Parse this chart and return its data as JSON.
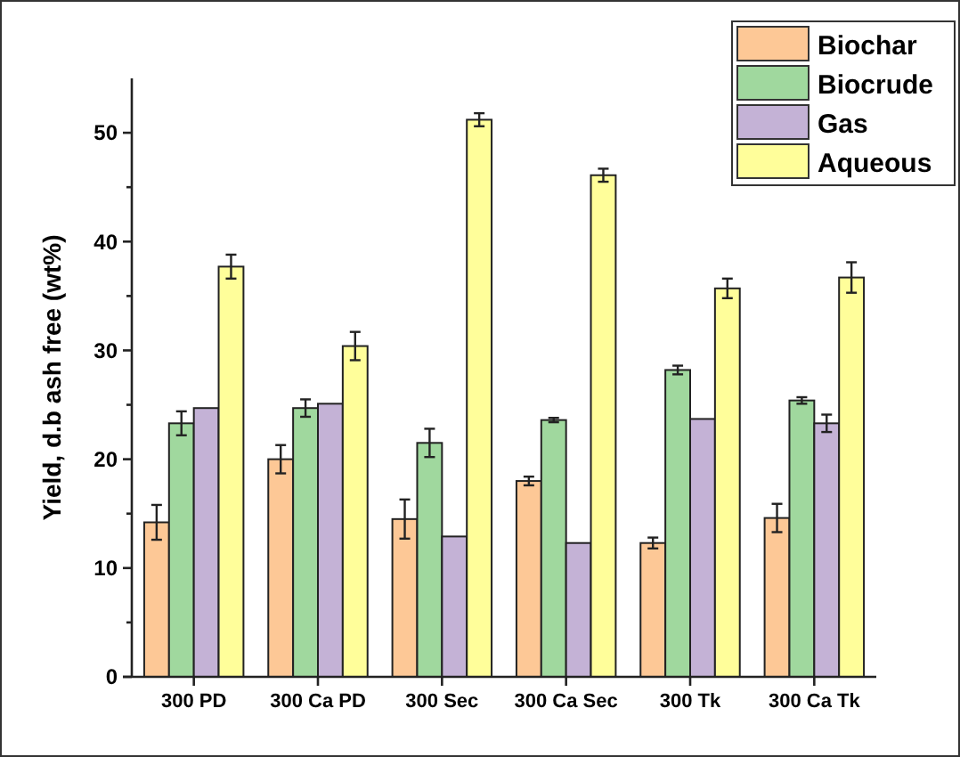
{
  "chart_data": {
    "type": "bar",
    "ylabel": "Yield, d.b ash free (wt%)",
    "categories": [
      "300 PD",
      "300 Ca PD",
      "300 Sec",
      "300 Ca Sec",
      "300 Tk",
      "300 Ca Tk"
    ],
    "series": [
      {
        "name": "Biochar",
        "color": "#fdc896",
        "values": [
          14.2,
          20.0,
          14.5,
          18.0,
          12.3,
          14.6
        ],
        "errors": [
          1.6,
          1.3,
          1.8,
          0.4,
          0.5,
          1.3
        ]
      },
      {
        "name": "Biocrude",
        "color": "#a0d89e",
        "values": [
          23.3,
          24.7,
          21.5,
          23.6,
          28.2,
          25.4
        ],
        "errors": [
          1.1,
          0.8,
          1.3,
          0.2,
          0.4,
          0.3
        ]
      },
      {
        "name": "Gas",
        "color": "#c4b2d6",
        "values": [
          24.7,
          25.1,
          12.9,
          12.3,
          23.7,
          23.3
        ],
        "errors": [
          null,
          null,
          null,
          null,
          null,
          0.8
        ]
      },
      {
        "name": "Aqueous",
        "color": "#fffe9a",
        "values": [
          37.7,
          30.4,
          51.2,
          46.1,
          35.7,
          36.7
        ],
        "errors": [
          1.1,
          1.3,
          0.6,
          0.6,
          0.9,
          1.4
        ]
      }
    ],
    "ylim": [
      0,
      55
    ],
    "yticks": [
      0,
      {
        "value": 5,
        "label": null
      },
      10,
      {
        "value": 15,
        "label": null
      },
      20,
      {
        "value": 25,
        "label": null
      },
      30,
      {
        "value": 35,
        "label": null
      },
      40,
      {
        "value": 45,
        "label": null
      },
      50
    ],
    "grid": false,
    "legend": "top right"
  }
}
